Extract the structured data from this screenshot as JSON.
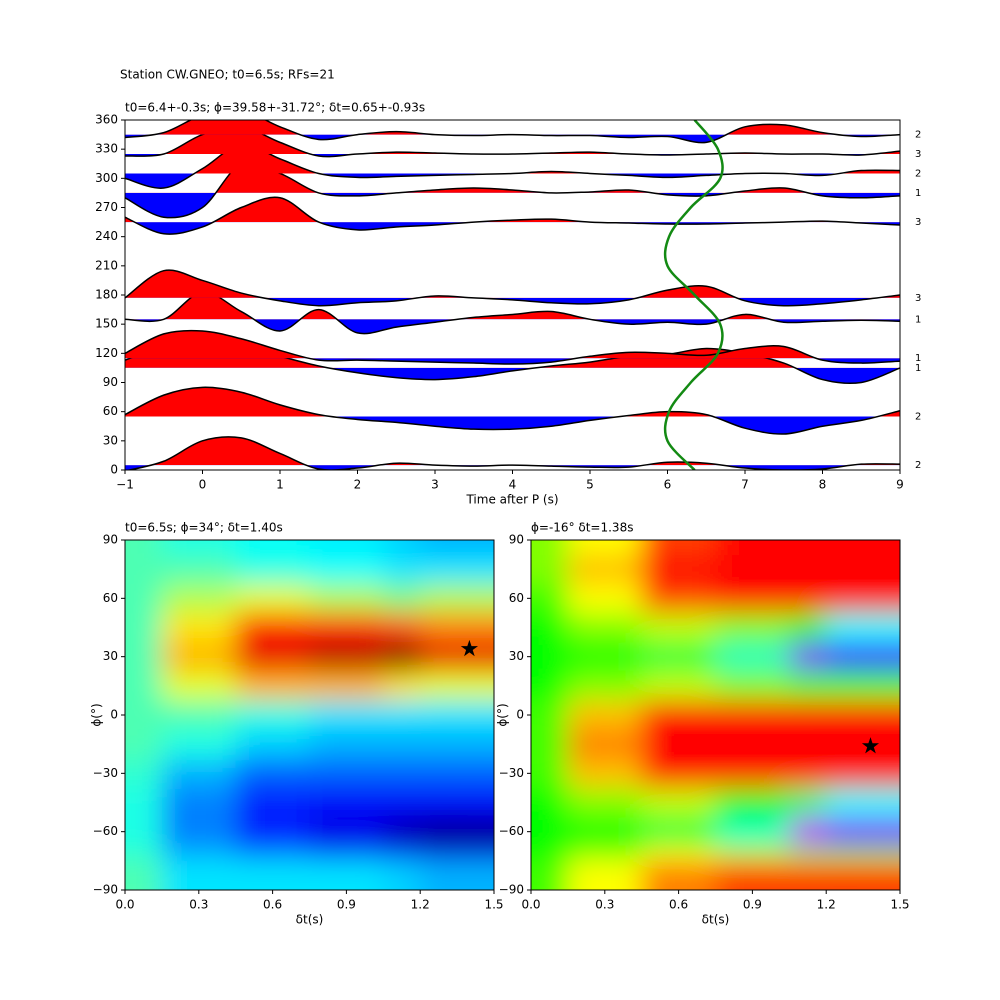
{
  "figure_title": "Station CW.GNEO; t0=6.5s; RFs=21",
  "chart_data": [
    {
      "type": "wiggle",
      "title": "t0=6.4+-0.3s; ϕ=39.58+-31.72°; δt=0.65+-0.93s",
      "xlabel": "Time after P (s)",
      "xlim": [
        -1,
        9
      ],
      "xticks": [
        {
          "value": -1,
          "label": "−1"
        },
        0,
        1,
        2,
        3,
        4,
        5,
        6,
        7,
        8,
        9
      ],
      "ylim": [
        0,
        360
      ],
      "yticks": [
        0,
        30,
        60,
        90,
        120,
        150,
        180,
        210,
        240,
        270,
        300,
        330,
        360
      ],
      "positive_color": "#ff0000",
      "negative_color": "#0000ff",
      "x": [
        -1,
        -0.5,
        0,
        0.5,
        1,
        1.5,
        2,
        2.5,
        3,
        3.5,
        4,
        4.5,
        5,
        5.5,
        6,
        6.5,
        7,
        7.5,
        8,
        8.5,
        9
      ],
      "traces": [
        {
          "baz": 5,
          "count": 2,
          "values": [
            -6,
            4,
            25,
            28,
            12,
            -4,
            -3,
            2,
            0,
            -1,
            0,
            -1,
            -2,
            -2,
            3,
            2,
            -3,
            -5,
            -4,
            1,
            1
          ]
        },
        {
          "baz": 55,
          "count": 2,
          "values": [
            2,
            22,
            30,
            25,
            12,
            2,
            -3,
            -6,
            -10,
            -13,
            -13,
            -10,
            -4,
            1,
            5,
            2,
            -12,
            -18,
            -10,
            -4,
            6
          ]
        },
        {
          "baz": 105,
          "count": 1,
          "values": [
            8,
            22,
            28,
            22,
            12,
            2,
            -5,
            -10,
            -12,
            -9,
            -3,
            2,
            6,
            12,
            14,
            20,
            15,
            5,
            -12,
            -15,
            0
          ]
        },
        {
          "baz": 115,
          "count": 1,
          "values": [
            5,
            25,
            28,
            20,
            8,
            -2,
            -2,
            -3,
            -4,
            -5,
            -6,
            -4,
            2,
            6,
            5,
            3,
            10,
            12,
            -2,
            -5,
            -3
          ]
        },
        {
          "baz": 155,
          "count": 1,
          "values": [
            0,
            0,
            28,
            8,
            -12,
            10,
            -14,
            -8,
            -3,
            2,
            5,
            8,
            0,
            -5,
            -3,
            -5,
            5,
            -3,
            -2,
            -1,
            -2
          ]
        },
        {
          "baz": 177,
          "count": 3,
          "values": [
            0,
            28,
            18,
            5,
            -3,
            -8,
            -5,
            -3,
            2,
            0,
            -2,
            -5,
            -6,
            -2,
            8,
            12,
            -3,
            -8,
            -6,
            -2,
            3
          ]
        },
        {
          "baz": 255,
          "count": 3,
          "values": [
            5,
            -12,
            -5,
            15,
            25,
            0,
            -8,
            -5,
            -3,
            0,
            2,
            3,
            0,
            -1,
            -2,
            -2,
            -1,
            0,
            1,
            -1,
            -3
          ]
        },
        {
          "baz": 285,
          "count": 1,
          "values": [
            -5,
            -25,
            -15,
            30,
            20,
            0,
            -3,
            0,
            3,
            5,
            3,
            0,
            1,
            3,
            -2,
            -3,
            2,
            5,
            -3,
            -5,
            -3
          ]
        },
        {
          "baz": 305,
          "count": 2,
          "values": [
            -5,
            -15,
            5,
            30,
            15,
            0,
            -4,
            -3,
            -2,
            -1,
            0,
            2,
            0,
            -2,
            -4,
            -2,
            0,
            0,
            -2,
            3,
            3
          ]
        },
        {
          "baz": 325,
          "count": 3,
          "values": [
            -2,
            0,
            20,
            28,
            12,
            -2,
            0,
            2,
            1,
            0,
            0,
            1,
            2,
            0,
            -1,
            0,
            1,
            0,
            0,
            -1,
            3
          ]
        },
        {
          "baz": 345,
          "count": 2,
          "values": [
            -3,
            2,
            20,
            25,
            8,
            -5,
            0,
            3,
            0,
            -1,
            0,
            -1,
            -1,
            -3,
            -2,
            -8,
            8,
            10,
            2,
            -2,
            0
          ]
        }
      ],
      "curve": {
        "color": "#138a13",
        "x": [
          6.35,
          6.0,
          6.02,
          6.3,
          6.65,
          6.68,
          6.35,
          6.0,
          6.02,
          6.3,
          6.68,
          6.65,
          6.35
        ],
        "y": [
          0,
          30,
          60,
          90,
          120,
          150,
          180,
          210,
          240,
          270,
          300,
          330,
          360
        ]
      }
    },
    {
      "type": "heatmap",
      "colormap": "jet",
      "title": "t0=6.5s; ϕ=34°; δt=1.40s",
      "xlabel": "δt(s)",
      "ylabel": "ϕ(°)",
      "xlim": [
        0,
        1.5
      ],
      "xticks": [
        {
          "value": 0,
          "label": "0.0"
        },
        0.3,
        0.6,
        0.9,
        1.2,
        1.5
      ],
      "ylim": [
        -90,
        90
      ],
      "yticks": [
        {
          "value": -90,
          "label": "−90"
        },
        {
          "value": -60,
          "label": "−60"
        },
        {
          "value": -30,
          "label": "−30"
        },
        0,
        30,
        60,
        90
      ],
      "dt": [
        0,
        0.3,
        0.6,
        0.9,
        1.2,
        1.5
      ],
      "phi": [
        90,
        75,
        60,
        45,
        30,
        15,
        0,
        -15,
        -30,
        -45,
        -60,
        -75,
        -90
      ],
      "values": [
        [
          0.45,
          0.4,
          0.38,
          0.36,
          0.33,
          0.3
        ],
        [
          0.45,
          0.45,
          0.4,
          0.38,
          0.35,
          0.35
        ],
        [
          0.45,
          0.55,
          0.6,
          0.55,
          0.5,
          0.55
        ],
        [
          0.45,
          0.65,
          0.85,
          0.85,
          0.8,
          0.75
        ],
        [
          0.45,
          0.7,
          0.9,
          0.95,
          1.0,
          0.9
        ],
        [
          0.45,
          0.6,
          0.7,
          0.7,
          0.65,
          0.6
        ],
        [
          0.45,
          0.45,
          0.4,
          0.35,
          0.35,
          0.35
        ],
        [
          0.45,
          0.4,
          0.33,
          0.3,
          0.3,
          0.3
        ],
        [
          0.42,
          0.3,
          0.22,
          0.22,
          0.22,
          0.22
        ],
        [
          0.4,
          0.25,
          0.15,
          0.12,
          0.12,
          0.12
        ],
        [
          0.4,
          0.25,
          0.15,
          0.1,
          0.05,
          0.02
        ],
        [
          0.42,
          0.3,
          0.25,
          0.2,
          0.15,
          0.1
        ],
        [
          0.45,
          0.35,
          0.35,
          0.35,
          0.33,
          0.3
        ]
      ],
      "star": {
        "dt": 1.4,
        "phi": 34
      }
    },
    {
      "type": "heatmap",
      "colormap": "hsv",
      "title": "ϕ=-16° δt=1.38s",
      "xlabel": "δt(s)",
      "ylabel": "ϕ(°)",
      "xlim": [
        0,
        1.5
      ],
      "xticks": [
        {
          "value": 0,
          "label": "0.0"
        },
        0.3,
        0.6,
        0.9,
        1.2,
        1.5
      ],
      "ylim": [
        -90,
        90
      ],
      "yticks": [
        {
          "value": -90,
          "label": "−90"
        },
        {
          "value": -60,
          "label": "−60"
        },
        {
          "value": -30,
          "label": "−30"
        },
        0,
        30,
        60,
        90
      ],
      "dt": [
        0,
        0.3,
        0.6,
        0.9,
        1.2,
        1.5
      ],
      "phi": [
        90,
        75,
        60,
        45,
        30,
        15,
        0,
        -15,
        -30,
        -45,
        -60,
        -75,
        -90
      ],
      "values": [
        [
          0.7,
          0.8,
          0.95,
          1,
          1,
          1
        ],
        [
          0.7,
          0.85,
          1,
          1,
          1,
          1
        ],
        [
          0.65,
          0.8,
          0.95,
          1,
          1,
          1
        ],
        [
          0.6,
          0.7,
          0.75,
          0.7,
          0.6,
          0.4
        ],
        [
          0.6,
          0.6,
          0.55,
          0.45,
          0.1,
          0.15
        ],
        [
          0.6,
          0.7,
          0.75,
          0.7,
          0.65,
          0.65
        ],
        [
          0.65,
          0.85,
          1,
          1,
          1,
          1
        ],
        [
          0.65,
          0.9,
          1,
          1,
          1,
          1
        ],
        [
          0.65,
          0.85,
          1,
          1,
          1,
          1
        ],
        [
          0.6,
          0.7,
          0.75,
          0.6,
          0.5,
          0.4
        ],
        [
          0.6,
          0.6,
          0.55,
          0.45,
          0.05,
          0.1
        ],
        [
          0.6,
          0.7,
          0.8,
          0.75,
          0.7,
          0.7
        ],
        [
          0.65,
          0.8,
          0.9,
          0.95,
          0.95,
          0.95
        ]
      ],
      "star": {
        "dt": 1.38,
        "phi": -16
      }
    }
  ]
}
